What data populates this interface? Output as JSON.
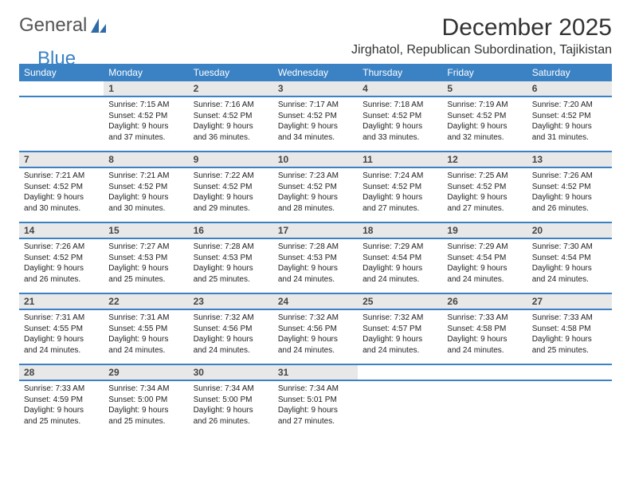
{
  "logo": {
    "text1": "General",
    "text2": "Blue",
    "icon_color": "#2f6aa8"
  },
  "title": "December 2025",
  "location": "Jirghatol, Republican Subordination, Tajikistan",
  "colors": {
    "header_bg": "#3b82c4",
    "header_text": "#ffffff",
    "daynum_bg": "#e8e8e8",
    "divider": "#3b82c4"
  },
  "fonts": {
    "title_size": 30,
    "location_size": 16,
    "dayhead_size": 12,
    "cell_size": 10
  },
  "day_headers": [
    "Sunday",
    "Monday",
    "Tuesday",
    "Wednesday",
    "Thursday",
    "Friday",
    "Saturday"
  ],
  "weeks": [
    {
      "nums": [
        "",
        "1",
        "2",
        "3",
        "4",
        "5",
        "6"
      ],
      "cells": [
        null,
        {
          "sunrise": "Sunrise: 7:15 AM",
          "sunset": "Sunset: 4:52 PM",
          "day1": "Daylight: 9 hours",
          "day2": "and 37 minutes."
        },
        {
          "sunrise": "Sunrise: 7:16 AM",
          "sunset": "Sunset: 4:52 PM",
          "day1": "Daylight: 9 hours",
          "day2": "and 36 minutes."
        },
        {
          "sunrise": "Sunrise: 7:17 AM",
          "sunset": "Sunset: 4:52 PM",
          "day1": "Daylight: 9 hours",
          "day2": "and 34 minutes."
        },
        {
          "sunrise": "Sunrise: 7:18 AM",
          "sunset": "Sunset: 4:52 PM",
          "day1": "Daylight: 9 hours",
          "day2": "and 33 minutes."
        },
        {
          "sunrise": "Sunrise: 7:19 AM",
          "sunset": "Sunset: 4:52 PM",
          "day1": "Daylight: 9 hours",
          "day2": "and 32 minutes."
        },
        {
          "sunrise": "Sunrise: 7:20 AM",
          "sunset": "Sunset: 4:52 PM",
          "day1": "Daylight: 9 hours",
          "day2": "and 31 minutes."
        }
      ]
    },
    {
      "nums": [
        "7",
        "8",
        "9",
        "10",
        "11",
        "12",
        "13"
      ],
      "cells": [
        {
          "sunrise": "Sunrise: 7:21 AM",
          "sunset": "Sunset: 4:52 PM",
          "day1": "Daylight: 9 hours",
          "day2": "and 30 minutes."
        },
        {
          "sunrise": "Sunrise: 7:21 AM",
          "sunset": "Sunset: 4:52 PM",
          "day1": "Daylight: 9 hours",
          "day2": "and 30 minutes."
        },
        {
          "sunrise": "Sunrise: 7:22 AM",
          "sunset": "Sunset: 4:52 PM",
          "day1": "Daylight: 9 hours",
          "day2": "and 29 minutes."
        },
        {
          "sunrise": "Sunrise: 7:23 AM",
          "sunset": "Sunset: 4:52 PM",
          "day1": "Daylight: 9 hours",
          "day2": "and 28 minutes."
        },
        {
          "sunrise": "Sunrise: 7:24 AM",
          "sunset": "Sunset: 4:52 PM",
          "day1": "Daylight: 9 hours",
          "day2": "and 27 minutes."
        },
        {
          "sunrise": "Sunrise: 7:25 AM",
          "sunset": "Sunset: 4:52 PM",
          "day1": "Daylight: 9 hours",
          "day2": "and 27 minutes."
        },
        {
          "sunrise": "Sunrise: 7:26 AM",
          "sunset": "Sunset: 4:52 PM",
          "day1": "Daylight: 9 hours",
          "day2": "and 26 minutes."
        }
      ]
    },
    {
      "nums": [
        "14",
        "15",
        "16",
        "17",
        "18",
        "19",
        "20"
      ],
      "cells": [
        {
          "sunrise": "Sunrise: 7:26 AM",
          "sunset": "Sunset: 4:52 PM",
          "day1": "Daylight: 9 hours",
          "day2": "and 26 minutes."
        },
        {
          "sunrise": "Sunrise: 7:27 AM",
          "sunset": "Sunset: 4:53 PM",
          "day1": "Daylight: 9 hours",
          "day2": "and 25 minutes."
        },
        {
          "sunrise": "Sunrise: 7:28 AM",
          "sunset": "Sunset: 4:53 PM",
          "day1": "Daylight: 9 hours",
          "day2": "and 25 minutes."
        },
        {
          "sunrise": "Sunrise: 7:28 AM",
          "sunset": "Sunset: 4:53 PM",
          "day1": "Daylight: 9 hours",
          "day2": "and 24 minutes."
        },
        {
          "sunrise": "Sunrise: 7:29 AM",
          "sunset": "Sunset: 4:54 PM",
          "day1": "Daylight: 9 hours",
          "day2": "and 24 minutes."
        },
        {
          "sunrise": "Sunrise: 7:29 AM",
          "sunset": "Sunset: 4:54 PM",
          "day1": "Daylight: 9 hours",
          "day2": "and 24 minutes."
        },
        {
          "sunrise": "Sunrise: 7:30 AM",
          "sunset": "Sunset: 4:54 PM",
          "day1": "Daylight: 9 hours",
          "day2": "and 24 minutes."
        }
      ]
    },
    {
      "nums": [
        "21",
        "22",
        "23",
        "24",
        "25",
        "26",
        "27"
      ],
      "cells": [
        {
          "sunrise": "Sunrise: 7:31 AM",
          "sunset": "Sunset: 4:55 PM",
          "day1": "Daylight: 9 hours",
          "day2": "and 24 minutes."
        },
        {
          "sunrise": "Sunrise: 7:31 AM",
          "sunset": "Sunset: 4:55 PM",
          "day1": "Daylight: 9 hours",
          "day2": "and 24 minutes."
        },
        {
          "sunrise": "Sunrise: 7:32 AM",
          "sunset": "Sunset: 4:56 PM",
          "day1": "Daylight: 9 hours",
          "day2": "and 24 minutes."
        },
        {
          "sunrise": "Sunrise: 7:32 AM",
          "sunset": "Sunset: 4:56 PM",
          "day1": "Daylight: 9 hours",
          "day2": "and 24 minutes."
        },
        {
          "sunrise": "Sunrise: 7:32 AM",
          "sunset": "Sunset: 4:57 PM",
          "day1": "Daylight: 9 hours",
          "day2": "and 24 minutes."
        },
        {
          "sunrise": "Sunrise: 7:33 AM",
          "sunset": "Sunset: 4:58 PM",
          "day1": "Daylight: 9 hours",
          "day2": "and 24 minutes."
        },
        {
          "sunrise": "Sunrise: 7:33 AM",
          "sunset": "Sunset: 4:58 PM",
          "day1": "Daylight: 9 hours",
          "day2": "and 25 minutes."
        }
      ]
    },
    {
      "nums": [
        "28",
        "29",
        "30",
        "31",
        "",
        "",
        ""
      ],
      "cells": [
        {
          "sunrise": "Sunrise: 7:33 AM",
          "sunset": "Sunset: 4:59 PM",
          "day1": "Daylight: 9 hours",
          "day2": "and 25 minutes."
        },
        {
          "sunrise": "Sunrise: 7:34 AM",
          "sunset": "Sunset: 5:00 PM",
          "day1": "Daylight: 9 hours",
          "day2": "and 25 minutes."
        },
        {
          "sunrise": "Sunrise: 7:34 AM",
          "sunset": "Sunset: 5:00 PM",
          "day1": "Daylight: 9 hours",
          "day2": "and 26 minutes."
        },
        {
          "sunrise": "Sunrise: 7:34 AM",
          "sunset": "Sunset: 5:01 PM",
          "day1": "Daylight: 9 hours",
          "day2": "and 27 minutes."
        },
        null,
        null,
        null
      ]
    }
  ]
}
